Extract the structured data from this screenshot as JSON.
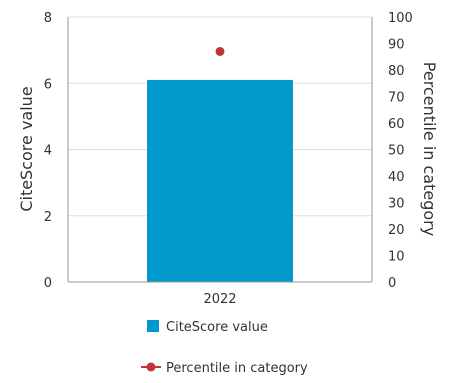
{
  "chart_data": {
    "type": "bar",
    "categories": [
      "2022"
    ],
    "series": [
      {
        "name": "CiteScore value",
        "type": "bar",
        "axis": "left",
        "values": [
          6.1
        ],
        "color": "#0099cc"
      },
      {
        "name": "Percentile in category",
        "type": "scatter",
        "axis": "right",
        "values": [
          87
        ],
        "color": "#c0353a"
      }
    ],
    "ylabel": "CiteScore value",
    "y2label": "Percentile in category",
    "ylim": [
      0,
      8
    ],
    "y2lim": [
      0,
      100
    ],
    "yticks": [
      "0",
      "2",
      "4",
      "6",
      "8"
    ],
    "y2ticks": [
      "0",
      "10",
      "20",
      "30",
      "40",
      "50",
      "60",
      "70",
      "80",
      "90",
      "100"
    ],
    "grid": true,
    "legend_position": "bottom",
    "colors": {
      "grid": "#dddddd",
      "axis": "#999999"
    }
  }
}
